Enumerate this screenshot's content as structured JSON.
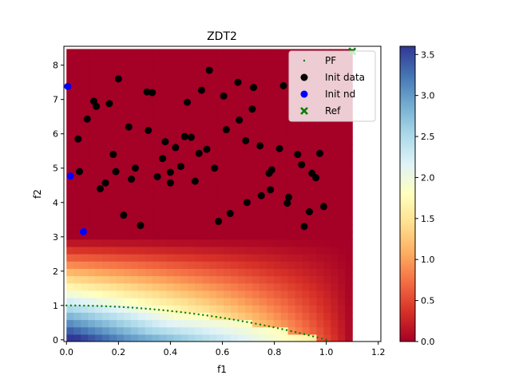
{
  "chart_data": {
    "type": "scatter",
    "title": "ZDT2",
    "xlabel": "f1",
    "ylabel": "f2",
    "xlim": [
      -0.01,
      1.21
    ],
    "ylim": [
      -0.05,
      8.55
    ],
    "heatmap_xlim": [
      0.0,
      1.1
    ],
    "heatmap_ylim": [
      -0.05,
      8.47
    ],
    "x_ticks": [
      "0.0",
      "0.2",
      "0.4",
      "0.6",
      "0.8",
      "1.0",
      "1.2"
    ],
    "y_ticks": [
      "0",
      "1",
      "2",
      "3",
      "4",
      "5",
      "6",
      "7",
      "8"
    ],
    "colorbar": {
      "colormap": "RdYlBu",
      "range": [
        0.0,
        3.6
      ],
      "ticks": [
        "0.0",
        "0.5",
        "1.0",
        "1.5",
        "2.0",
        "2.5",
        "3.0",
        "3.5"
      ]
    },
    "legend": {
      "placement": "top-right",
      "entries": [
        "PF",
        "Init data",
        "Init nd",
        "Ref"
      ]
    },
    "series": [
      {
        "name": "PF",
        "color": "#008000",
        "marker": "small-dot",
        "function": "f2 = 1 - f1^2, f1 in [0, 1]",
        "points": 60
      },
      {
        "name": "Init data",
        "color": "#000000",
        "marker": "circle",
        "points": [
          [
            0.2,
            7.6
          ],
          [
            0.105,
            6.95
          ],
          [
            0.115,
            6.8
          ],
          [
            0.08,
            6.43
          ],
          [
            0.045,
            5.85
          ],
          [
            0.05,
            4.9
          ],
          [
            0.165,
            6.88
          ],
          [
            0.24,
            6.2
          ],
          [
            0.18,
            5.4
          ],
          [
            0.19,
            4.9
          ],
          [
            0.15,
            4.57
          ],
          [
            0.13,
            4.4
          ],
          [
            0.22,
            3.63
          ],
          [
            0.285,
            3.33
          ],
          [
            0.25,
            4.68
          ],
          [
            0.265,
            5.0
          ],
          [
            0.31,
            7.22
          ],
          [
            0.33,
            7.2
          ],
          [
            0.315,
            6.1
          ],
          [
            0.35,
            4.75
          ],
          [
            0.37,
            5.28
          ],
          [
            0.38,
            5.77
          ],
          [
            0.4,
            4.88
          ],
          [
            0.4,
            4.57
          ],
          [
            0.42,
            5.6
          ],
          [
            0.44,
            5.05
          ],
          [
            0.455,
            5.92
          ],
          [
            0.465,
            6.92
          ],
          [
            0.48,
            5.9
          ],
          [
            0.495,
            4.62
          ],
          [
            0.51,
            5.43
          ],
          [
            0.52,
            7.27
          ],
          [
            0.54,
            5.55
          ],
          [
            0.55,
            7.85
          ],
          [
            0.57,
            5.0
          ],
          [
            0.585,
            3.45
          ],
          [
            0.605,
            7.1
          ],
          [
            0.615,
            6.12
          ],
          [
            0.63,
            3.68
          ],
          [
            0.66,
            7.5
          ],
          [
            0.665,
            6.4
          ],
          [
            0.69,
            5.8
          ],
          [
            0.695,
            4.0
          ],
          [
            0.715,
            6.72
          ],
          [
            0.72,
            7.35
          ],
          [
            0.745,
            5.65
          ],
          [
            0.75,
            4.2
          ],
          [
            0.78,
            4.85
          ],
          [
            0.785,
            4.37
          ],
          [
            0.79,
            4.95
          ],
          [
            0.82,
            5.57
          ],
          [
            0.835,
            7.4
          ],
          [
            0.85,
            3.98
          ],
          [
            0.855,
            4.15
          ],
          [
            0.89,
            5.4
          ],
          [
            0.905,
            5.1
          ],
          [
            0.915,
            3.3
          ],
          [
            0.935,
            3.73
          ],
          [
            0.945,
            4.85
          ],
          [
            0.96,
            4.72
          ],
          [
            0.975,
            5.43
          ],
          [
            0.99,
            3.88
          ]
        ]
      },
      {
        "name": "Init nd",
        "color": "#0000ff",
        "marker": "circle",
        "points": [
          [
            0.005,
            7.38
          ],
          [
            0.015,
            4.77
          ],
          [
            0.065,
            3.15
          ]
        ]
      },
      {
        "name": "Ref",
        "color": "#008000",
        "marker": "x",
        "points": [
          [
            1.1,
            8.4
          ]
        ]
      }
    ]
  }
}
